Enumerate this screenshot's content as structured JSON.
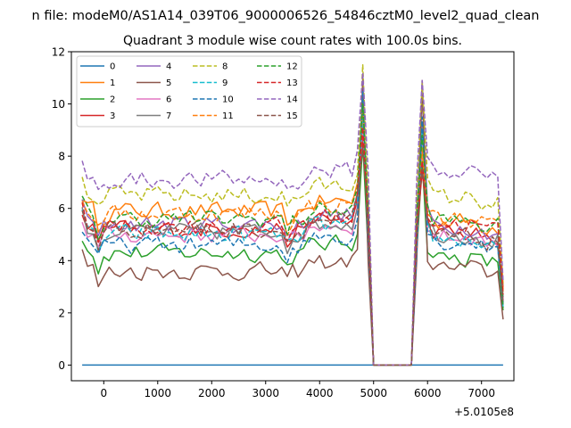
{
  "chart_data": {
    "type": "line",
    "suptitle": "n file: modeM0/AS1A14_039T06_9000006526_54846cztM0_level2_quad_clean",
    "title": "Quadrant 3 module wise count rates with 100.0s bins.",
    "xlabel": "",
    "ylabel": "",
    "x_offset_label": "+5.0105e8",
    "xlim": [
      -600,
      7600
    ],
    "ylim": [
      -0.6,
      12
    ],
    "xticks": [
      0,
      1000,
      2000,
      3000,
      4000,
      5000,
      6000,
      7000
    ],
    "yticks": [
      0,
      2,
      4,
      6,
      8,
      10,
      12
    ],
    "grid": false,
    "legend": {
      "placement": "top-left",
      "columns": 4
    },
    "gaps": [
      [
        4800,
        5000
      ],
      [
        5700,
        5900
      ]
    ],
    "spikes": {
      "4800": [
        0.0,
        9.0,
        8.5,
        8.8,
        10.2,
        11.0,
        9.2,
        9.8,
        11.5,
        9.6,
        10.5,
        9.9,
        10.0,
        9.1,
        11.2,
        8.3
      ],
      "5900": [
        0.0,
        8.2,
        7.8,
        7.4,
        10.3,
        10.9,
        8.6,
        9.2,
        10.8,
        9.0,
        9.5,
        8.3,
        8.8,
        7.8,
        10.9,
        7.5
      ]
    },
    "series": [
      {
        "name": "0",
        "color": "#1f77b4",
        "dash": false,
        "base": 0.0,
        "level_after": 0.0,
        "end": 0.0
      },
      {
        "name": "1",
        "color": "#ff7f0e",
        "dash": false,
        "base": 5.9,
        "level_after": 5.5,
        "end": 2.8
      },
      {
        "name": "2",
        "color": "#2ca02c",
        "dash": false,
        "base": 4.3,
        "level_after": 4.1,
        "end": 2.1
      },
      {
        "name": "3",
        "color": "#d62728",
        "dash": false,
        "base": 5.2,
        "level_after": 5.0,
        "end": 3.0
      },
      {
        "name": "4",
        "color": "#9467bd",
        "dash": false,
        "base": 5.4,
        "level_after": 5.3,
        "end": 2.4
      },
      {
        "name": "5",
        "color": "#8c564b",
        "dash": false,
        "base": 3.6,
        "level_after": 3.7,
        "end": 1.75
      },
      {
        "name": "6",
        "color": "#e377c2",
        "dash": false,
        "base": 5.0,
        "level_after": 4.9,
        "end": 2.5
      },
      {
        "name": "7",
        "color": "#7f7f7f",
        "dash": false,
        "base": 5.1,
        "level_after": 5.0,
        "end": 2.6
      },
      {
        "name": "8",
        "color": "#bcbd22",
        "dash": true,
        "base": 6.5,
        "level_after": 6.4,
        "end": 3.1
      },
      {
        "name": "9",
        "color": "#17becf",
        "dash": true,
        "base": 5.0,
        "level_after": 4.8,
        "end": 2.2
      },
      {
        "name": "10",
        "color": "#1f77b4",
        "dash": true,
        "base": 4.6,
        "level_after": 4.7,
        "end": 2.3
      },
      {
        "name": "11",
        "color": "#ff7f0e",
        "dash": true,
        "base": 5.8,
        "level_after": 5.6,
        "end": 2.9
      },
      {
        "name": "12",
        "color": "#2ca02c",
        "dash": true,
        "base": 5.6,
        "level_after": 5.5,
        "end": 2.2
      },
      {
        "name": "13",
        "color": "#d62728",
        "dash": true,
        "base": 5.3,
        "level_after": 5.4,
        "end": 2.7
      },
      {
        "name": "14",
        "color": "#9467bd",
        "dash": true,
        "base": 7.1,
        "level_after": 7.4,
        "end": 3.2
      },
      {
        "name": "15",
        "color": "#8c564b",
        "dash": true,
        "base": 5.2,
        "level_after": 4.9,
        "end": 2.4
      }
    ]
  }
}
